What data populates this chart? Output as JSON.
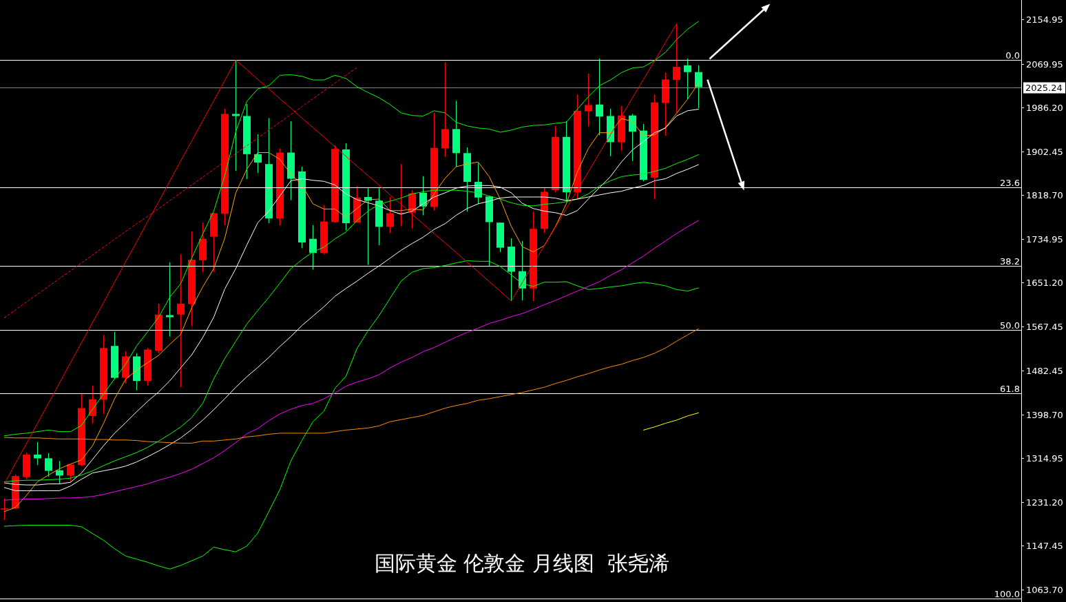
{
  "chart_data": {
    "type": "candlestick",
    "title": "国际黄金 伦敦金 月线图  张尧浠",
    "tick_labels": "y",
    "categories": [
      null,
      null,
      null,
      null,
      null,
      null,
      null,
      null,
      null,
      null,
      null,
      null,
      null,
      null,
      null,
      null,
      null,
      null,
      null,
      null,
      null,
      null,
      null,
      null,
      null,
      null,
      null,
      null,
      null,
      null,
      null,
      null,
      null,
      null,
      null,
      null,
      null,
      null,
      null,
      null,
      null,
      null,
      null,
      null,
      null,
      null,
      null,
      null,
      null,
      null,
      null,
      null,
      null,
      null,
      null,
      null,
      null,
      null,
      null,
      null,
      null,
      null,
      null,
      null
    ],
    "ohlc": [
      [
        1217,
        1238,
        1197,
        1219
      ],
      [
        1219,
        1284,
        1218,
        1281
      ],
      [
        1279,
        1326,
        1275,
        1322
      ],
      [
        1322,
        1346,
        1302,
        1315
      ],
      [
        1315,
        1325,
        1280,
        1291
      ],
      [
        1292,
        1310,
        1266,
        1282
      ],
      [
        1282,
        1304,
        1269,
        1303
      ],
      [
        1302,
        1439,
        1300,
        1411
      ],
      [
        1396,
        1454,
        1382,
        1428
      ],
      [
        1427,
        1551,
        1400,
        1526
      ],
      [
        1530,
        1557,
        1466,
        1469
      ],
      [
        1469,
        1520,
        1458,
        1510
      ],
      [
        1510,
        1516,
        1445,
        1463
      ],
      [
        1463,
        1526,
        1454,
        1523
      ],
      [
        1521,
        1611,
        1516,
        1590
      ],
      [
        1589,
        1690,
        1548,
        1585
      ],
      [
        1590,
        1705,
        1451,
        1611
      ],
      [
        1610,
        1749,
        1568,
        1695
      ],
      [
        1694,
        1766,
        1671,
        1735
      ],
      [
        1739,
        1785,
        1672,
        1784
      ],
      [
        1783,
        1984,
        1761,
        1974
      ],
      [
        1974,
        2076,
        1865,
        1970
      ],
      [
        1970,
        1993,
        1849,
        1897
      ],
      [
        1897,
        1935,
        1861,
        1881
      ],
      [
        1878,
        1966,
        1765,
        1774
      ],
      [
        1774,
        1908,
        1761,
        1900
      ],
      [
        1900,
        1960,
        1809,
        1850
      ],
      [
        1864,
        1873,
        1717,
        1728
      ],
      [
        1735,
        1761,
        1676,
        1708
      ],
      [
        1708,
        1799,
        1705,
        1768
      ],
      [
        1767,
        1914,
        1766,
        1907
      ],
      [
        1906,
        1918,
        1751,
        1765
      ],
      [
        1766,
        1836,
        1766,
        1814
      ],
      [
        1815,
        1833,
        1685,
        1808
      ],
      [
        1808,
        1834,
        1723,
        1758
      ],
      [
        1758,
        1815,
        1746,
        1784
      ],
      [
        1783,
        1878,
        1759,
        1785
      ],
      [
        1785,
        1828,
        1755,
        1822
      ],
      [
        1823,
        1855,
        1780,
        1797
      ],
      [
        1796,
        1976,
        1789,
        1909
      ],
      [
        1908,
        2073,
        1892,
        1945
      ],
      [
        1945,
        1999,
        1873,
        1899
      ],
      [
        1899,
        1910,
        1787,
        1844
      ],
      [
        1844,
        1880,
        1802,
        1814
      ],
      [
        1816,
        1817,
        1682,
        1767
      ],
      [
        1766,
        1766,
        1710,
        1718
      ],
      [
        1720,
        1736,
        1616,
        1672
      ],
      [
        1673,
        1731,
        1617,
        1640
      ],
      [
        1640,
        1787,
        1616,
        1754
      ],
      [
        1754,
        1833,
        1746,
        1825
      ],
      [
        1828,
        1951,
        1824,
        1930
      ],
      [
        1930,
        1960,
        1807,
        1824
      ],
      [
        1824,
        2011,
        1811,
        1980
      ],
      [
        1979,
        2051,
        1950,
        1991
      ],
      [
        1992,
        2080,
        1933,
        1969
      ],
      [
        1970,
        1984,
        1893,
        1920
      ],
      [
        1920,
        1989,
        1904,
        1971
      ],
      [
        1971,
        1974,
        1884,
        1940
      ],
      [
        1942,
        1955,
        1845,
        1848
      ],
      [
        1852,
        2011,
        1811,
        1996
      ],
      [
        1995,
        2053,
        1932,
        2040
      ],
      [
        2039,
        2146,
        1977,
        2064
      ],
      [
        2067,
        2080,
        2002,
        2054
      ],
      [
        2054,
        2067,
        1985,
        2025.24
      ]
    ],
    "colors": [
      "#ff0000",
      "#ff0000",
      "#ff0000",
      "#00ff7f",
      "#00ff7f",
      "#00ff7f",
      "#ff0000",
      "#ff0000",
      "#ff0000",
      "#ff0000",
      "#00ff7f",
      "#ff0000",
      "#00ff7f",
      "#ff0000",
      "#ff0000",
      "#00ff7f",
      "#ff0000",
      "#ff0000",
      "#ff0000",
      "#ff0000",
      "#ff0000",
      "#00ff7f",
      "#00ff7f",
      "#00ff7f",
      "#00ff7f",
      "#ff0000",
      "#00ff7f",
      "#00ff7f",
      "#00ff7f",
      "#ff0000",
      "#ff0000",
      "#00ff7f",
      "#ff0000",
      "#00ff7f",
      "#00ff7f",
      "#ff0000",
      "#ff0000",
      "#ff0000",
      "#00ff7f",
      "#ff0000",
      "#ff0000",
      "#00ff7f",
      "#00ff7f",
      "#00ff7f",
      "#00ff7f",
      "#00ff7f",
      "#00ff7f",
      "#00ff7f",
      "#ff0000",
      "#ff0000",
      "#ff0000",
      "#00ff7f",
      "#ff0000",
      "#ff0000",
      "#00ff7f",
      "#00ff7f",
      "#ff0000",
      "#00ff7f",
      "#00ff7f",
      "#ff0000",
      "#ff0000",
      "#ff0000",
      "#00ff7f",
      "#00ff7f"
    ],
    "series": [
      {
        "type": "line",
        "color": "#ffa500",
        "values": [
          1213,
          1221,
          1244,
          1270,
          1283,
          1295,
          1304,
          1312,
          1339,
          1382,
          1429,
          1466,
          1484,
          1498,
          1512,
          1533,
          1552,
          1603,
          1643,
          1678,
          1736,
          1823,
          1868,
          1900,
          1900,
          1887,
          1859,
          1838,
          1802,
          1792,
          1792,
          1776,
          1793,
          1810,
          1811,
          1789,
          1789,
          1792,
          1790,
          1821,
          1851,
          1873,
          1878,
          1882,
          1854,
          1811,
          1759,
          1720,
          1710,
          1722,
          1758,
          1802,
          1863,
          1908,
          1938,
          1938,
          1965,
          1960,
          1932,
          1934,
          1948,
          1975,
          2002,
          2033
        ]
      },
      {
        "type": "line",
        "color": "#ffffff",
        "values": [
          1268,
          1265,
          1264,
          1264,
          1266,
          1266,
          1269,
          1287,
          1313,
          1339,
          1363,
          1383,
          1404,
          1424,
          1442,
          1463,
          1488,
          1513,
          1546,
          1585,
          1639,
          1678,
          1723,
          1766,
          1788,
          1817,
          1846,
          1850,
          1847,
          1845,
          1838,
          1821,
          1810,
          1804,
          1798,
          1789,
          1782,
          1788,
          1802,
          1815,
          1823,
          1832,
          1836,
          1837,
          1837,
          1834,
          1823,
          1803,
          1793,
          1788,
          1785,
          1780,
          1789,
          1811,
          1833,
          1854,
          1882,
          1905,
          1921,
          1938,
          1947,
          1970,
          1980,
          1983
        ]
      },
      {
        "type": "line",
        "color": "#00ff00",
        "values": [
          1270,
          1272,
          1273,
          1273,
          1274,
          1275,
          1277,
          1283,
          1291,
          1301,
          1310,
          1318,
          1326,
          1336,
          1348,
          1361,
          1375,
          1393,
          1420,
          1467,
          1506,
          1539,
          1572,
          1598,
          1623,
          1650,
          1678,
          1695,
          1710,
          1719,
          1735,
          1748,
          1770,
          1788,
          1801,
          1807,
          1813,
          1821,
          1825,
          1828,
          1828,
          1828,
          1826,
          1823,
          1817,
          1811,
          1804,
          1799,
          1798,
          1801,
          1803,
          1806,
          1811,
          1821,
          1836,
          1846,
          1854,
          1857,
          1859,
          1864,
          1870,
          1879,
          1887,
          1896
        ]
      },
      {
        "type": "line",
        "color": "#00ff00",
        "values": [
          1358,
          1361,
          1363,
          1366,
          1369,
          1366,
          1366,
          1378,
          1409,
          1438,
          1467,
          1495,
          1530,
          1557,
          1585,
          1623,
          1649,
          1698,
          1744,
          1788,
          1856,
          1940,
          1998,
          2022,
          2028,
          2048,
          2049,
          2046,
          2039,
          2039,
          2048,
          2042,
          2026,
          2015,
          2005,
          1992,
          1976,
          1971,
          1970,
          1980,
          1976,
          1958,
          1951,
          1947,
          1945,
          1939,
          1943,
          1949,
          1952,
          1953,
          1956,
          1958,
          1983,
          2007,
          2028,
          2039,
          2053,
          2062,
          2064,
          2076,
          2092,
          2116,
          2136,
          2151
        ]
      },
      {
        "type": "line",
        "color": "#00ff00",
        "values": [
          1185,
          1186,
          1187,
          1187,
          1187,
          1187,
          1187,
          1184,
          1171,
          1158,
          1142,
          1128,
          1122,
          1116,
          1109,
          1103,
          1110,
          1119,
          1128,
          1145,
          1140,
          1136,
          1147,
          1172,
          1213,
          1255,
          1310,
          1349,
          1385,
          1405,
          1449,
          1472,
          1525,
          1559,
          1588,
          1621,
          1654,
          1671,
          1678,
          1680,
          1684,
          1689,
          1693,
          1692,
          1692,
          1682,
          1666,
          1649,
          1644,
          1652,
          1652,
          1653,
          1645,
          1638,
          1640,
          1643,
          1645,
          1649,
          1652,
          1649,
          1645,
          1638,
          1635,
          1641
        ]
      },
      {
        "type": "line",
        "color": "#ffffff",
        "values": [
          1259,
          1253,
          1253,
          1253,
          1253,
          1253,
          1262,
          1275,
          1287,
          1291,
          1295,
          1300,
          1308,
          1318,
          1329,
          1341,
          1354,
          1370,
          1388,
          1408,
          1429,
          1451,
          1471,
          1489,
          1508,
          1529,
          1548,
          1569,
          1587,
          1605,
          1625,
          1640,
          1654,
          1669,
          1683,
          1698,
          1713,
          1726,
          1738,
          1753,
          1764,
          1780,
          1793,
          1802,
          1807,
          1813,
          1815,
          1815,
          1815,
          1815,
          1813,
          1808,
          1811,
          1815,
          1819,
          1823,
          1826,
          1832,
          1837,
          1846,
          1850,
          1860,
          1868,
          1877
        ]
      },
      {
        "type": "line",
        "color": "#ff00ff",
        "values": [
          1235,
          1236,
          1237,
          1237,
          1238,
          1239,
          1239,
          1240,
          1242,
          1246,
          1251,
          1256,
          1261,
          1266,
          1273,
          1279,
          1286,
          1294,
          1305,
          1316,
          1330,
          1345,
          1362,
          1372,
          1387,
          1400,
          1409,
          1416,
          1420,
          1429,
          1440,
          1453,
          1461,
          1467,
          1475,
          1488,
          1499,
          1508,
          1519,
          1527,
          1537,
          1547,
          1556,
          1564,
          1573,
          1579,
          1586,
          1592,
          1600,
          1609,
          1617,
          1626,
          1635,
          1644,
          1653,
          1665,
          1676,
          1689,
          1702,
          1717,
          1731,
          1745,
          1758,
          1770
        ]
      },
      {
        "type": "line",
        "color": "#ff8c00",
        "values": [
          1355,
          1354,
          1354,
          1354,
          1353,
          1352,
          1352,
          1352,
          1351,
          1351,
          1350,
          1350,
          1349,
          1347,
          1346,
          1345,
          1344,
          1344,
          1348,
          1348,
          1350,
          1352,
          1356,
          1358,
          1361,
          1363,
          1363,
          1363,
          1363,
          1363,
          1366,
          1369,
          1371,
          1373,
          1377,
          1385,
          1389,
          1393,
          1397,
          1404,
          1411,
          1416,
          1420,
          1426,
          1429,
          1433,
          1437,
          1441,
          1446,
          1451,
          1458,
          1464,
          1471,
          1477,
          1484,
          1490,
          1495,
          1502,
          1508,
          1516,
          1526,
          1539,
          1551,
          1563
        ]
      },
      {
        "type": "line",
        "color": "#ffff00",
        "values": [
          null,
          null,
          null,
          null,
          null,
          null,
          null,
          null,
          null,
          null,
          null,
          null,
          null,
          null,
          null,
          null,
          null,
          null,
          null,
          null,
          null,
          null,
          null,
          null,
          null,
          null,
          null,
          null,
          null,
          null,
          null,
          null,
          null,
          null,
          null,
          null,
          null,
          null,
          null,
          null,
          null,
          null,
          null,
          null,
          null,
          null,
          null,
          null,
          null,
          null,
          null,
          null,
          null,
          null,
          null,
          null,
          null,
          null,
          1369,
          1375,
          1382,
          1388,
          1396,
          1402
        ]
      },
      {
        "type": "line",
        "color": "#ff0000",
        "values": [
          1266,
          1305,
          1343,
          1382,
          1420,
          1459,
          1498,
          1536,
          1575,
          1613,
          1652,
          1691,
          1729,
          1768,
          1806,
          1845,
          1884,
          1922,
          1961,
          1999,
          2038,
          2077,
          2059,
          2040,
          2022,
          2003,
          1985,
          1966,
          1948,
          1930,
          1911,
          1893,
          1874,
          1856,
          1838,
          1819,
          1801,
          1782,
          1764,
          1745,
          1727,
          1709,
          1690,
          1672,
          1653,
          1635,
          1616,
          1651,
          1687,
          1722,
          1757,
          1793,
          1828,
          1863,
          1899,
          1934,
          1969,
          2005,
          2040,
          2075,
          2111,
          2146,
          null,
          null
        ]
      },
      {
        "type": "line",
        "color": "#ff0000",
        "line_style": "dashed",
        "values": [
          1584,
          1599,
          1614,
          1629,
          1644,
          1659,
          1674,
          1689,
          1704,
          1719,
          1734,
          1749,
          1764,
          1778,
          1793,
          1808,
          1823,
          1838,
          1853,
          1868,
          1883,
          1898,
          1913,
          1928,
          1943,
          1958,
          1973,
          1988,
          2003,
          2018,
          2033,
          2048,
          2063,
          null,
          null,
          null,
          null,
          null,
          null,
          null,
          null,
          null,
          null,
          null,
          null,
          null,
          null,
          null,
          null,
          null,
          null,
          null,
          null,
          null,
          null,
          null,
          null,
          null,
          null,
          null,
          null,
          null,
          null,
          null
        ]
      }
    ],
    "ylim": [
      1040,
      2192
    ],
    "yticks": [
      2154.95,
      2069.95,
      {
        "value": 1986.2,
        "label": "1986.20"
      },
      1902.45,
      {
        "value": 1818.7,
        "label": "1818.70"
      },
      1734.95,
      {
        "value": 1651.2,
        "label": "1651.20"
      },
      1567.45,
      1482.45,
      {
        "value": 1398.7,
        "label": "1398.70"
      },
      1314.95,
      {
        "value": 1231.2,
        "label": "1231.20"
      },
      1147.45,
      {
        "value": 1063.7,
        "label": "1063.70"
      }
    ],
    "ref_lines": [
      {
        "axis": "y",
        "value": 2077,
        "color": "#ffffff"
      },
      {
        "axis": "y",
        "value": 1834,
        "color": "#ffffff"
      },
      {
        "axis": "y",
        "value": 1683,
        "color": "#ffffff"
      },
      {
        "axis": "y",
        "value": 1561,
        "color": "#ffffff"
      },
      {
        "axis": "y",
        "value": 1440,
        "color": "#ffffff"
      },
      {
        "axis": "y",
        "value": 1047,
        "color": "#ffffff"
      },
      {
        "axis": "y",
        "value": 2025.24,
        "label": "2025.24",
        "color": "#778899"
      }
    ],
    "annotations": [
      {
        "text": "0.0",
        "y": 2077
      },
      {
        "text": "23.6",
        "y": 1834
      },
      {
        "text": "38.2",
        "y": 1683
      },
      {
        "text": "50.0",
        "y": 1561
      },
      {
        "text": "61.8",
        "y": 1440
      },
      {
        "text": "100.0",
        "y": 1047
      }
    ]
  }
}
